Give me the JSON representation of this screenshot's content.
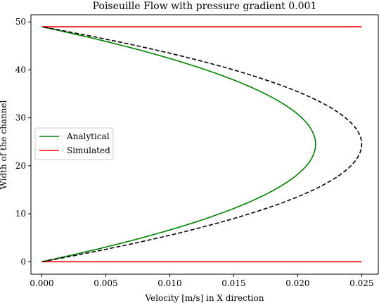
{
  "chart_data": {
    "type": "line",
    "title": "Poiseuille Flow with pressure gradient 0.001",
    "xlabel": "Velocity [m/s] in X direction",
    "ylabel": "Width of the channel",
    "xlim": [
      -0.00085,
      0.0263
    ],
    "ylim": [
      -2.6,
      51.5
    ],
    "xticks": [
      0.0,
      0.005,
      0.01,
      0.015,
      0.02,
      0.025
    ],
    "xtick_labels": [
      "0.000",
      "0.005",
      "0.010",
      "0.015",
      "0.020",
      "0.025"
    ],
    "yticks": [
      0,
      10,
      20,
      30,
      40,
      50
    ],
    "ytick_labels": [
      "0",
      "10",
      "20",
      "30",
      "40",
      "50"
    ],
    "grid": false,
    "legend_position": "center-left",
    "series": [
      {
        "name": "Analytical",
        "color": "#008000",
        "style": "solid",
        "shape": "parabola",
        "points": [
          [
            0.0,
            0
          ],
          [
            0.0214,
            24.5
          ],
          [
            0.0,
            49
          ]
        ]
      },
      {
        "name": "Simulated",
        "color": "#ff0000",
        "style": "solid",
        "shape": "segments",
        "segments": [
          [
            [
              0.0,
              0
            ],
            [
              0.025,
              0
            ]
          ],
          [
            [
              0.0,
              49
            ],
            [
              0.025,
              49
            ]
          ]
        ]
      },
      {
        "name": "",
        "color": "#000000",
        "style": "dashed",
        "shape": "parabola",
        "points": [
          [
            0.0,
            0
          ],
          [
            0.025,
            24.5
          ],
          [
            0.0,
            49
          ]
        ]
      }
    ]
  }
}
